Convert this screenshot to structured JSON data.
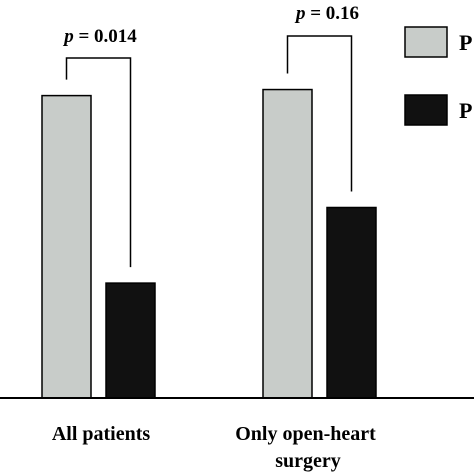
{
  "chart_data": {
    "type": "bar",
    "categories": [
      "All patients",
      "Only open-heart surgery"
    ],
    "category_lines": [
      [
        "All patients"
      ],
      [
        "Only open-heart",
        "surgery"
      ]
    ],
    "series": [
      {
        "legend_label": "P",
        "color": "#c8ccc9",
        "values": [
          100,
          102
        ]
      },
      {
        "legend_label": "P",
        "color": "#111111",
        "values": [
          38,
          63
        ]
      }
    ],
    "ylim": [
      0,
      125
    ],
    "grid": false,
    "legend_position": "top-right",
    "annotations": [
      {
        "p_prefix": "p",
        "p_value": " = 0.014",
        "category_index": 0
      },
      {
        "p_prefix": "p",
        "p_value": " = 0.16",
        "category_index": 1
      }
    ]
  }
}
